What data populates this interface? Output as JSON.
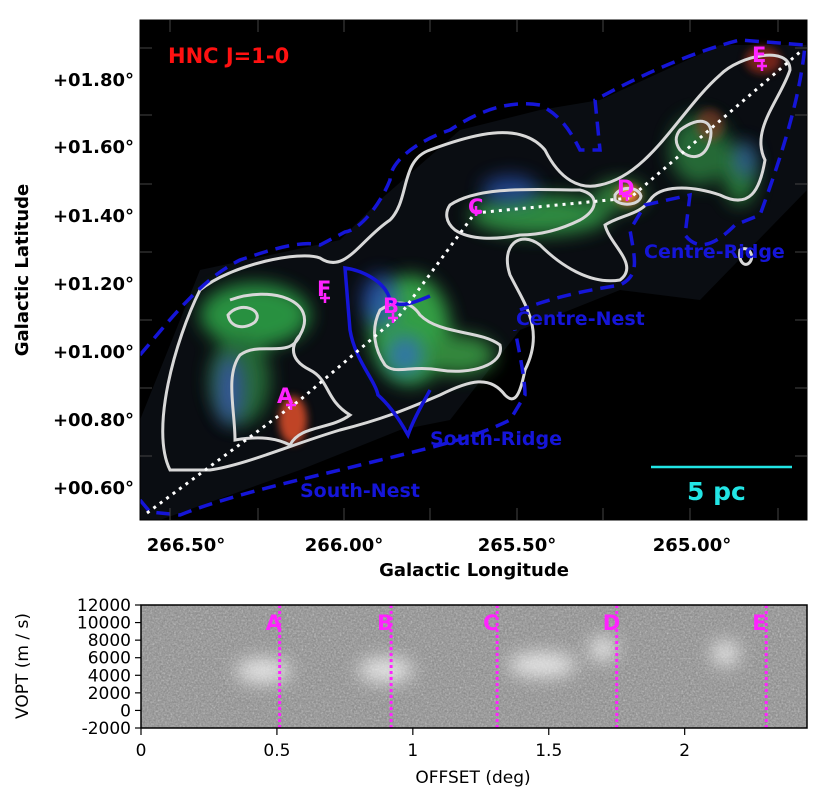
{
  "colors": {
    "title": "#ff1111",
    "points": "#ff22ff",
    "regions": "#1515d8",
    "contours": "#d8d8d8",
    "scalebar": "#22e5e5",
    "background": "#000000"
  },
  "map": {
    "title": "HNC J=1-0",
    "xlabel": "Galactic Longitude",
    "ylabel": "Galactic Latitude",
    "x_ticks": [
      "266.50°",
      "266.00°",
      "265.50°",
      "265.00°"
    ],
    "y_ticks": [
      "+01.80°",
      "+01.60°",
      "+01.40°",
      "+01.20°",
      "+01.00°",
      "+00.80°",
      "+00.60°"
    ],
    "regions": [
      "Centre-Ridge",
      "Centre-Nest",
      "South-Ridge",
      "South-Nest"
    ],
    "points": [
      "A",
      "B",
      "C",
      "D",
      "E",
      "F"
    ],
    "scale_label": "5 pc"
  },
  "chart_data": {
    "type": "heatmap",
    "xlabel": "OFFSET (deg)",
    "ylabel": "VOPT (m / s)",
    "x_ticks": [
      "0",
      "0.5",
      "1",
      "1.5",
      "2"
    ],
    "y_ticks": [
      "12000",
      "10000",
      "8000",
      "6000",
      "4000",
      "2000",
      "0",
      "-2000"
    ],
    "xlim": [
      0,
      2.45
    ],
    "ylim": [
      -2000,
      12000
    ],
    "markers": [
      {
        "label": "A",
        "offset": 0.51
      },
      {
        "label": "B",
        "offset": 0.92
      },
      {
        "label": "C",
        "offset": 1.31
      },
      {
        "label": "D",
        "offset": 1.75
      },
      {
        "label": "E",
        "offset": 2.3
      }
    ],
    "emission": [
      {
        "offset_range": [
          0.35,
          0.55
        ],
        "velocity": 4500
      },
      {
        "offset_range": [
          0.8,
          1.0
        ],
        "velocity": 4600
      },
      {
        "offset_range": [
          1.35,
          1.6
        ],
        "velocity": 5200
      },
      {
        "offset_range": [
          1.65,
          1.75
        ],
        "velocity": 7000
      },
      {
        "offset_range": [
          2.1,
          2.2
        ],
        "velocity": 6500
      }
    ]
  }
}
